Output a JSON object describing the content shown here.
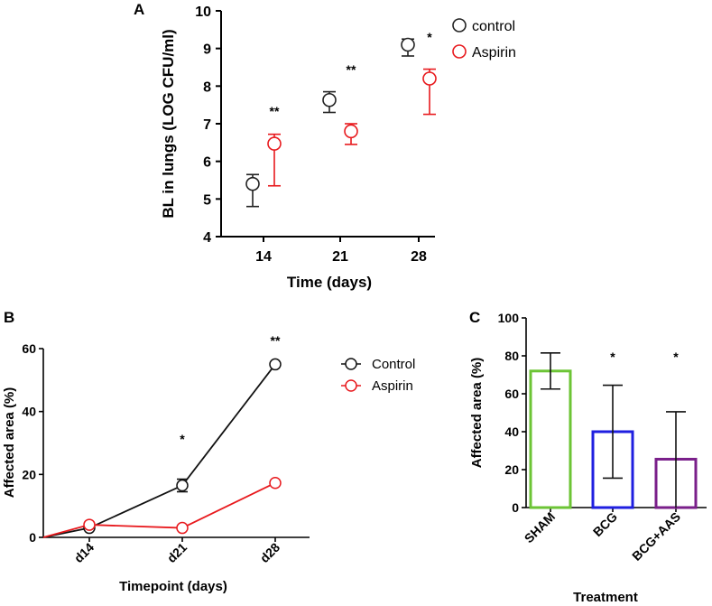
{
  "chart_data": [
    {
      "panel": "A",
      "type": "scatter",
      "title": "",
      "xlabel": "Time (days)",
      "ylabel": "BL in lungs (LOG CFU/ml)",
      "categories": [
        "14",
        "21",
        "28"
      ],
      "ylim": [
        4,
        10
      ],
      "yticks": [
        "4",
        "5",
        "6",
        "7",
        "8",
        "9",
        "10"
      ],
      "colors": {
        "control": "#222222",
        "aspirin": "#e8191d"
      },
      "series": [
        {
          "name": "control",
          "values": [
            5.4,
            7.63,
            9.1
          ],
          "err_low": [
            4.8,
            7.3,
            8.8
          ],
          "err_high": [
            5.65,
            7.85,
            9.25
          ]
        },
        {
          "name": "Aspirin",
          "values": [
            6.47,
            6.8,
            8.2
          ],
          "err_low": [
            5.35,
            6.45,
            7.25
          ],
          "err_high": [
            6.72,
            7.0,
            8.45
          ]
        }
      ],
      "annotations": [
        "**",
        "**",
        "*"
      ],
      "legend": [
        "control",
        "Aspirin"
      ]
    },
    {
      "panel": "B",
      "type": "line",
      "title": "",
      "xlabel": "Timepoint (days)",
      "ylabel": "Affected area (%)",
      "categories": [
        "d14",
        "d21",
        "d28"
      ],
      "ylim": [
        0,
        60
      ],
      "yticks": [
        "0",
        "20",
        "40",
        "60"
      ],
      "series": [
        {
          "name": "Control",
          "values": [
            3,
            16.5,
            55
          ],
          "err_low": [
            3,
            14.5,
            55
          ],
          "err_high": [
            3,
            18.5,
            55.5
          ]
        },
        {
          "name": "Aspirin",
          "values": [
            4,
            3,
            17.3
          ],
          "err_low": [
            4,
            3,
            17.3
          ],
          "err_high": [
            4,
            3,
            17.3
          ]
        }
      ],
      "annotations": [
        "",
        "*",
        "**"
      ],
      "legend": [
        "Control",
        "Aspirin"
      ]
    },
    {
      "panel": "C",
      "type": "bar",
      "title": "",
      "xlabel": "Treatment",
      "ylabel": "Affected area (%)",
      "categories": [
        "SHAM",
        "BCG",
        "BCG+AAS"
      ],
      "values": [
        72,
        40,
        25.5
      ],
      "err_low": [
        62.5,
        15.5,
        0
      ],
      "err_high": [
        81.5,
        64.5,
        50.5
      ],
      "colors": [
        "#6cc435",
        "#1f1fe0",
        "#7a1f8a"
      ],
      "ylim": [
        0,
        100
      ],
      "yticks": [
        "0",
        "20",
        "40",
        "60",
        "80",
        "100"
      ],
      "annotations": [
        "",
        "*",
        "*"
      ]
    }
  ]
}
